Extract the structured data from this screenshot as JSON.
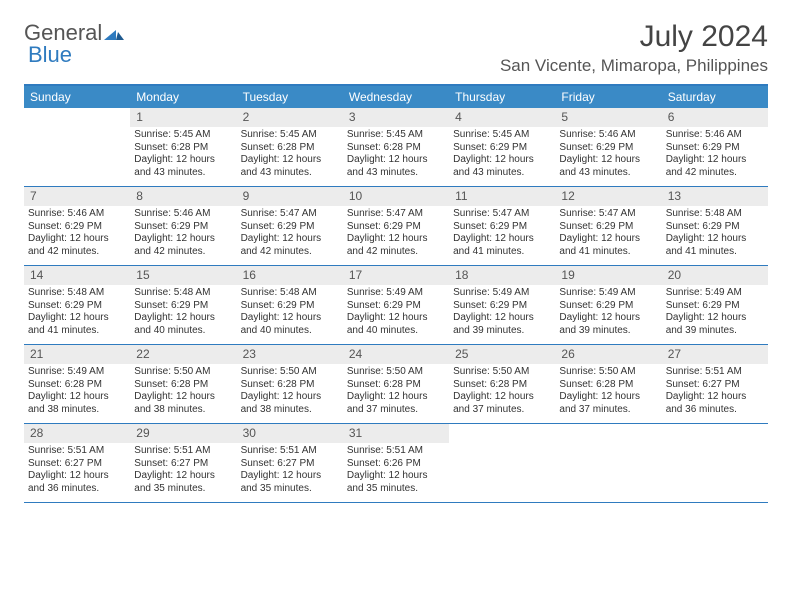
{
  "logo": {
    "text1": "General",
    "text2": "Blue"
  },
  "title": "July 2024",
  "location": "San Vicente, Mimaropa, Philippines",
  "colors": {
    "header_bg": "#3a8ac6",
    "border": "#2f7bbf",
    "daynum_bg": "#ececec",
    "text": "#333333",
    "logo_gray": "#555555",
    "logo_blue": "#2f7bbf"
  },
  "day_headers": [
    "Sunday",
    "Monday",
    "Tuesday",
    "Wednesday",
    "Thursday",
    "Friday",
    "Saturday"
  ],
  "weeks": [
    [
      null,
      {
        "n": "1",
        "sr": "Sunrise: 5:45 AM",
        "ss": "Sunset: 6:28 PM",
        "d1": "Daylight: 12 hours",
        "d2": "and 43 minutes."
      },
      {
        "n": "2",
        "sr": "Sunrise: 5:45 AM",
        "ss": "Sunset: 6:28 PM",
        "d1": "Daylight: 12 hours",
        "d2": "and 43 minutes."
      },
      {
        "n": "3",
        "sr": "Sunrise: 5:45 AM",
        "ss": "Sunset: 6:28 PM",
        "d1": "Daylight: 12 hours",
        "d2": "and 43 minutes."
      },
      {
        "n": "4",
        "sr": "Sunrise: 5:45 AM",
        "ss": "Sunset: 6:29 PM",
        "d1": "Daylight: 12 hours",
        "d2": "and 43 minutes."
      },
      {
        "n": "5",
        "sr": "Sunrise: 5:46 AM",
        "ss": "Sunset: 6:29 PM",
        "d1": "Daylight: 12 hours",
        "d2": "and 43 minutes."
      },
      {
        "n": "6",
        "sr": "Sunrise: 5:46 AM",
        "ss": "Sunset: 6:29 PM",
        "d1": "Daylight: 12 hours",
        "d2": "and 42 minutes."
      }
    ],
    [
      {
        "n": "7",
        "sr": "Sunrise: 5:46 AM",
        "ss": "Sunset: 6:29 PM",
        "d1": "Daylight: 12 hours",
        "d2": "and 42 minutes."
      },
      {
        "n": "8",
        "sr": "Sunrise: 5:46 AM",
        "ss": "Sunset: 6:29 PM",
        "d1": "Daylight: 12 hours",
        "d2": "and 42 minutes."
      },
      {
        "n": "9",
        "sr": "Sunrise: 5:47 AM",
        "ss": "Sunset: 6:29 PM",
        "d1": "Daylight: 12 hours",
        "d2": "and 42 minutes."
      },
      {
        "n": "10",
        "sr": "Sunrise: 5:47 AM",
        "ss": "Sunset: 6:29 PM",
        "d1": "Daylight: 12 hours",
        "d2": "and 42 minutes."
      },
      {
        "n": "11",
        "sr": "Sunrise: 5:47 AM",
        "ss": "Sunset: 6:29 PM",
        "d1": "Daylight: 12 hours",
        "d2": "and 41 minutes."
      },
      {
        "n": "12",
        "sr": "Sunrise: 5:47 AM",
        "ss": "Sunset: 6:29 PM",
        "d1": "Daylight: 12 hours",
        "d2": "and 41 minutes."
      },
      {
        "n": "13",
        "sr": "Sunrise: 5:48 AM",
        "ss": "Sunset: 6:29 PM",
        "d1": "Daylight: 12 hours",
        "d2": "and 41 minutes."
      }
    ],
    [
      {
        "n": "14",
        "sr": "Sunrise: 5:48 AM",
        "ss": "Sunset: 6:29 PM",
        "d1": "Daylight: 12 hours",
        "d2": "and 41 minutes."
      },
      {
        "n": "15",
        "sr": "Sunrise: 5:48 AM",
        "ss": "Sunset: 6:29 PM",
        "d1": "Daylight: 12 hours",
        "d2": "and 40 minutes."
      },
      {
        "n": "16",
        "sr": "Sunrise: 5:48 AM",
        "ss": "Sunset: 6:29 PM",
        "d1": "Daylight: 12 hours",
        "d2": "and 40 minutes."
      },
      {
        "n": "17",
        "sr": "Sunrise: 5:49 AM",
        "ss": "Sunset: 6:29 PM",
        "d1": "Daylight: 12 hours",
        "d2": "and 40 minutes."
      },
      {
        "n": "18",
        "sr": "Sunrise: 5:49 AM",
        "ss": "Sunset: 6:29 PM",
        "d1": "Daylight: 12 hours",
        "d2": "and 39 minutes."
      },
      {
        "n": "19",
        "sr": "Sunrise: 5:49 AM",
        "ss": "Sunset: 6:29 PM",
        "d1": "Daylight: 12 hours",
        "d2": "and 39 minutes."
      },
      {
        "n": "20",
        "sr": "Sunrise: 5:49 AM",
        "ss": "Sunset: 6:29 PM",
        "d1": "Daylight: 12 hours",
        "d2": "and 39 minutes."
      }
    ],
    [
      {
        "n": "21",
        "sr": "Sunrise: 5:49 AM",
        "ss": "Sunset: 6:28 PM",
        "d1": "Daylight: 12 hours",
        "d2": "and 38 minutes."
      },
      {
        "n": "22",
        "sr": "Sunrise: 5:50 AM",
        "ss": "Sunset: 6:28 PM",
        "d1": "Daylight: 12 hours",
        "d2": "and 38 minutes."
      },
      {
        "n": "23",
        "sr": "Sunrise: 5:50 AM",
        "ss": "Sunset: 6:28 PM",
        "d1": "Daylight: 12 hours",
        "d2": "and 38 minutes."
      },
      {
        "n": "24",
        "sr": "Sunrise: 5:50 AM",
        "ss": "Sunset: 6:28 PM",
        "d1": "Daylight: 12 hours",
        "d2": "and 37 minutes."
      },
      {
        "n": "25",
        "sr": "Sunrise: 5:50 AM",
        "ss": "Sunset: 6:28 PM",
        "d1": "Daylight: 12 hours",
        "d2": "and 37 minutes."
      },
      {
        "n": "26",
        "sr": "Sunrise: 5:50 AM",
        "ss": "Sunset: 6:28 PM",
        "d1": "Daylight: 12 hours",
        "d2": "and 37 minutes."
      },
      {
        "n": "27",
        "sr": "Sunrise: 5:51 AM",
        "ss": "Sunset: 6:27 PM",
        "d1": "Daylight: 12 hours",
        "d2": "and 36 minutes."
      }
    ],
    [
      {
        "n": "28",
        "sr": "Sunrise: 5:51 AM",
        "ss": "Sunset: 6:27 PM",
        "d1": "Daylight: 12 hours",
        "d2": "and 36 minutes."
      },
      {
        "n": "29",
        "sr": "Sunrise: 5:51 AM",
        "ss": "Sunset: 6:27 PM",
        "d1": "Daylight: 12 hours",
        "d2": "and 35 minutes."
      },
      {
        "n": "30",
        "sr": "Sunrise: 5:51 AM",
        "ss": "Sunset: 6:27 PM",
        "d1": "Daylight: 12 hours",
        "d2": "and 35 minutes."
      },
      {
        "n": "31",
        "sr": "Sunrise: 5:51 AM",
        "ss": "Sunset: 6:26 PM",
        "d1": "Daylight: 12 hours",
        "d2": "and 35 minutes."
      },
      null,
      null,
      null
    ]
  ]
}
